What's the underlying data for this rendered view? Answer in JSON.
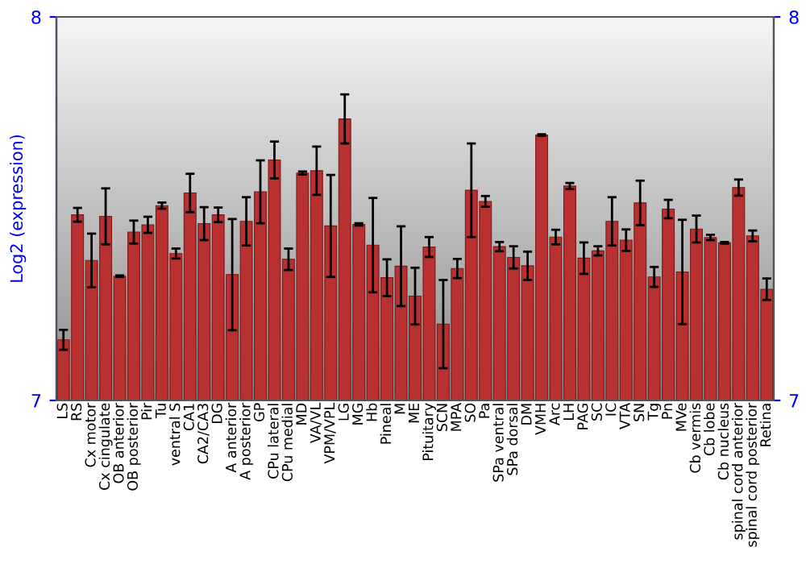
{
  "chart_data": {
    "type": "bar",
    "ylabel": "Log2 (expression)",
    "categories": [
      "LS",
      "RS",
      "Cx motor",
      "Cx cingulate",
      "OB anterior",
      "OB posterior",
      "Pir",
      "Tu",
      "ventral S",
      "CA1",
      "CA2/CA3",
      "DG",
      "A anterior",
      "A posterior",
      "GP",
      "CPu lateral",
      "CPu medial",
      "MD",
      "VA/VL",
      "VPM/VPL",
      "LG",
      "MG",
      "Hb",
      "Pineal",
      "M",
      "ME",
      "Pituitary",
      "SCN",
      "MPA",
      "SO",
      "Pa",
      "SPa ventral",
      "SPa dorsal",
      "DM",
      "VMH",
      "Arc",
      "LH",
      "PAG",
      "SC",
      "IC",
      "VTA",
      "SN",
      "Tg",
      "Pn",
      "MVe",
      "Cb vermis",
      "Cb lobe",
      "Cb nucleus",
      "spinal cord anterior",
      "spinal cord posterior",
      "Retina"
    ],
    "values": [
      7.158,
      7.484,
      7.365,
      7.48,
      7.324,
      7.439,
      7.458,
      7.508,
      7.383,
      7.541,
      7.461,
      7.484,
      7.328,
      7.467,
      7.544,
      7.627,
      7.368,
      7.593,
      7.599,
      7.455,
      7.734,
      7.459,
      7.405,
      7.32,
      7.35,
      7.272,
      7.4,
      7.199,
      7.344,
      7.548,
      7.519,
      7.401,
      7.373,
      7.351,
      7.692,
      7.426,
      7.559,
      7.371,
      7.39,
      7.467,
      7.418,
      7.515,
      7.322,
      7.499,
      7.335,
      7.447,
      7.425,
      7.411,
      7.555,
      7.429,
      7.29
    ],
    "errors": [
      0.026,
      0.018,
      0.07,
      0.073,
      0.002,
      0.03,
      0.021,
      0.008,
      0.013,
      0.05,
      0.043,
      0.019,
      0.145,
      0.063,
      0.082,
      0.048,
      0.028,
      0.004,
      0.063,
      0.133,
      0.064,
      0.003,
      0.123,
      0.048,
      0.104,
      0.074,
      0.026,
      0.115,
      0.025,
      0.122,
      0.014,
      0.012,
      0.029,
      0.037,
      0.002,
      0.019,
      0.008,
      0.041,
      0.012,
      0.063,
      0.028,
      0.058,
      0.026,
      0.024,
      0.136,
      0.035,
      0.007,
      0.002,
      0.021,
      0.014,
      0.028
    ],
    "color": "#b83030",
    "ylim": [
      7,
      8
    ],
    "yticks": [
      7,
      8
    ],
    "y2lim": [
      7,
      8
    ],
    "y2ticks": [
      7,
      8
    ],
    "grid": false
  }
}
